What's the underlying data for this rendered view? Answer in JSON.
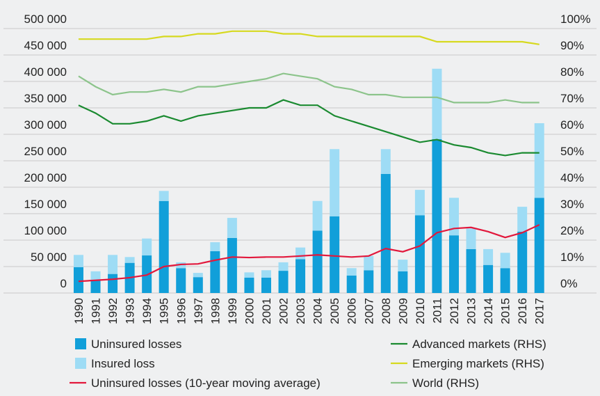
{
  "chart_data": {
    "type": "bar-line",
    "categories": [
      "1990",
      "1991",
      "1992",
      "1993",
      "1994",
      "1995",
      "1996",
      "1997",
      "1998",
      "1999",
      "2000",
      "2001",
      "2002",
      "2003",
      "2004",
      "2005",
      "2006",
      "2007",
      "2008",
      "2009",
      "2010",
      "2011",
      "2012",
      "2013",
      "2014",
      "2015",
      "2016",
      "2017"
    ],
    "series": [
      {
        "name": "Uninsured losses",
        "type": "bar",
        "stack": true,
        "color": "#119fd9",
        "values": [
          49000,
          24000,
          36000,
          57000,
          71000,
          174000,
          47000,
          30000,
          79000,
          104000,
          29000,
          29000,
          42000,
          64000,
          118000,
          145000,
          33000,
          43000,
          225000,
          41000,
          147000,
          291000,
          109000,
          83000,
          53000,
          47000,
          116000,
          180000
        ]
      },
      {
        "name": "Insured loss",
        "type": "bar",
        "stack": true,
        "color": "#9edcf5",
        "values": [
          23000,
          17000,
          36000,
          11000,
          32000,
          19000,
          11000,
          8000,
          17000,
          38000,
          10000,
          14000,
          16000,
          22000,
          56000,
          127000,
          14000,
          27000,
          47000,
          22000,
          48000,
          133000,
          71000,
          39000,
          30000,
          29000,
          47000,
          141000
        ]
      },
      {
        "name": "Uninsured losses (10-year moving average)",
        "type": "line",
        "color": "#e2183c",
        "values": [
          22000,
          24000,
          26000,
          29000,
          34000,
          50000,
          54000,
          55000,
          62000,
          68000,
          67000,
          68000,
          68000,
          70000,
          72000,
          70000,
          68000,
          70000,
          84000,
          78000,
          89000,
          114000,
          122000,
          124000,
          116000,
          105000,
          114000,
          129000
        ]
      },
      {
        "name": "Advanced markets (RHS)",
        "type": "line",
        "axis": "y2",
        "color": "#1a8a30",
        "values": [
          71,
          68,
          64,
          64,
          65,
          67,
          65,
          67,
          68,
          69,
          70,
          70,
          73,
          71,
          71,
          67,
          65,
          63,
          61,
          59,
          57,
          58,
          56,
          55,
          53,
          52,
          53,
          53
        ]
      },
      {
        "name": "Emerging markets (RHS)",
        "type": "line",
        "axis": "y2",
        "color": "#d6d91f",
        "values": [
          96,
          96,
          96,
          96,
          96,
          97,
          97,
          98,
          98,
          99,
          99,
          99,
          98,
          98,
          97,
          97,
          97,
          97,
          97,
          97,
          97,
          95,
          95,
          95,
          95,
          95,
          95,
          94
        ]
      },
      {
        "name": "World (RHS)",
        "type": "line",
        "axis": "y2",
        "color": "#8cc48b",
        "values": [
          82,
          78,
          75,
          76,
          76,
          77,
          76,
          78,
          78,
          79,
          80,
          81,
          83,
          82,
          81,
          78,
          77,
          75,
          75,
          74,
          74,
          74,
          72,
          72,
          72,
          73,
          72,
          72
        ]
      }
    ],
    "ylim": [
      0,
      500000
    ],
    "yticks": [
      0,
      {
        "value": 50000,
        "label": "50 000"
      },
      {
        "value": 100000,
        "label": "100 000"
      },
      {
        "value": 150000,
        "label": "150 000"
      },
      {
        "value": 200000,
        "label": "200 000"
      },
      {
        "value": 250000,
        "label": "250 000"
      },
      {
        "value": 300000,
        "label": "300 000"
      },
      {
        "value": 350000,
        "label": "350 000"
      },
      {
        "value": 400000,
        "label": "400 000"
      },
      {
        "value": 450000,
        "label": "450 000"
      },
      {
        "value": 500000,
        "label": "500 000"
      }
    ],
    "y2lim": [
      0,
      100
    ],
    "y2ticks": [
      {
        "value": 0,
        "label": "0%"
      },
      {
        "value": 10,
        "label": "10%"
      },
      {
        "value": 20,
        "label": "20%"
      },
      {
        "value": 30,
        "label": "30%"
      },
      {
        "value": 40,
        "label": "40%"
      },
      {
        "value": 50,
        "label": "50%"
      },
      {
        "value": 60,
        "label": "60%"
      },
      {
        "value": 70,
        "label": "70%"
      },
      {
        "value": 80,
        "label": "80%"
      },
      {
        "value": 90,
        "label": "90%"
      },
      {
        "value": 100,
        "label": "100%"
      }
    ],
    "grid": true,
    "legend": "bottom"
  }
}
